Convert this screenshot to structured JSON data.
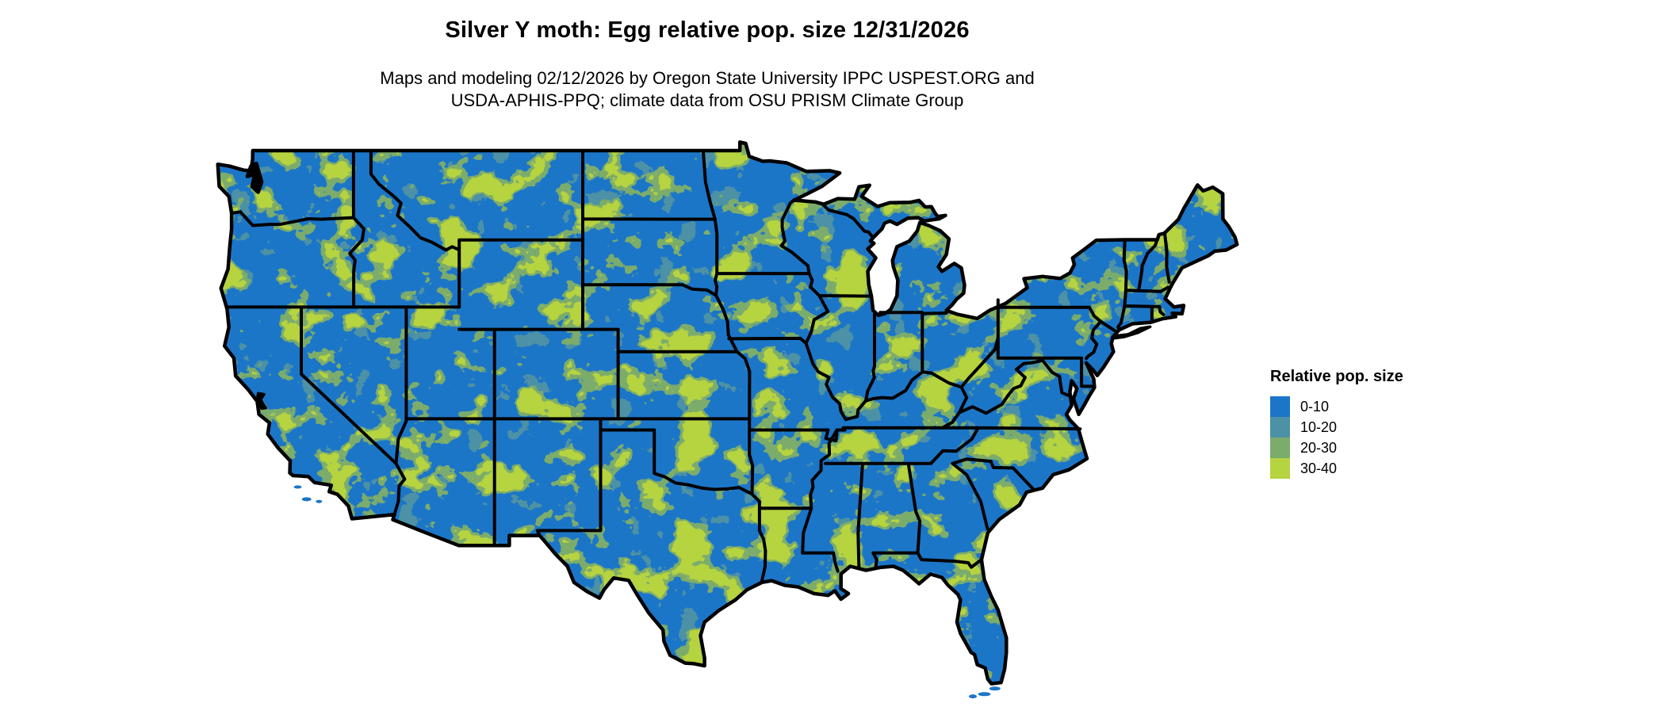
{
  "figure": {
    "title": "Silver Y moth: Egg relative pop. size 12/31/2026",
    "subtitle_lines": [
      "Maps and modeling 02/12/2026 by Oregon State University IPPC USPEST.ORG and",
      "USDA-APHIS-PPQ; climate data from OSU PRISM Climate Group"
    ]
  },
  "legend": {
    "title": "Relative pop. size",
    "items": [
      {
        "label": "0-10",
        "color": "#1C76C8"
      },
      {
        "label": "10-20",
        "color": "#4C91A5"
      },
      {
        "label": "20-30",
        "color": "#7CAC6C"
      },
      {
        "label": "30-40",
        "color": "#B6D340"
      }
    ]
  },
  "map": {
    "region": "Continental United States",
    "layer": "Egg relative population size raster with state borders",
    "base_color": "#1C76C8",
    "state_border_color": "#000000",
    "background_color": "#FFFFFF"
  }
}
